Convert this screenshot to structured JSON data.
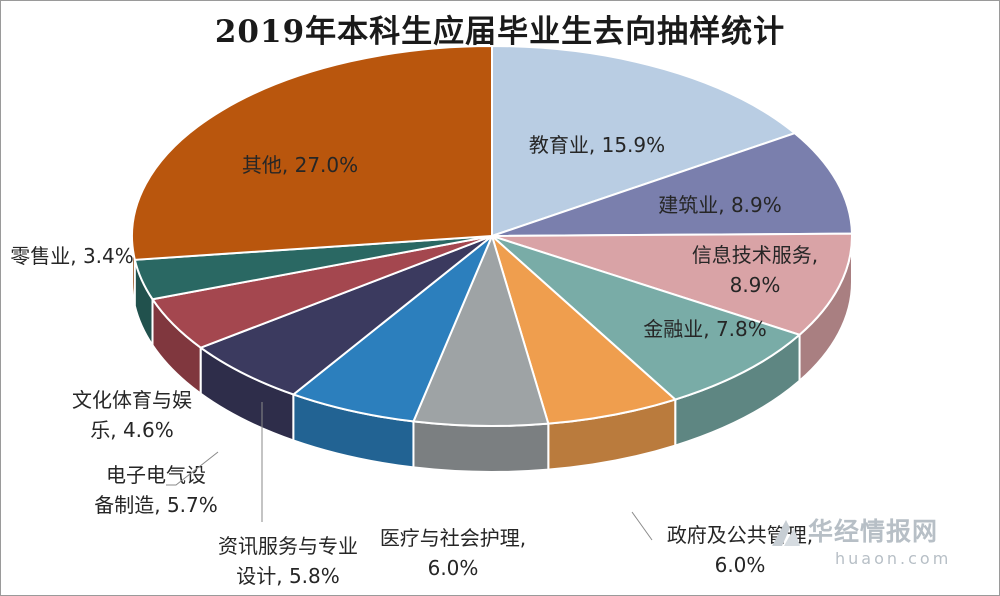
{
  "chart_data": {
    "type": "pie",
    "title": "2019年本科生应届毕业生去向抽样统计",
    "slices": [
      {
        "label": "教育业",
        "value": 15.9,
        "color": "#b9cde3"
      },
      {
        "label": "建筑业",
        "value": 8.9,
        "color": "#7a7fad"
      },
      {
        "label": "信息技术服务",
        "value": 8.9,
        "color": "#d9a3a6"
      },
      {
        "label": "金融业",
        "value": 7.8,
        "color": "#79aca7"
      },
      {
        "label": "政府及公共管理",
        "value": 6.0,
        "color": "#ef9e4e"
      },
      {
        "label": "医疗与社会护理",
        "value": 6.0,
        "color": "#9ea3a5"
      },
      {
        "label": "资讯服务与专业设计",
        "value": 5.8,
        "color": "#2c7fbd"
      },
      {
        "label": "电子电气设备制造",
        "value": 5.7,
        "color": "#3b3a5f"
      },
      {
        "label": "文化体育与娱乐",
        "value": 4.6,
        "color": "#a4474f"
      },
      {
        "label": "零售业",
        "value": 3.4,
        "color": "#2a6863"
      },
      {
        "label": "其他",
        "value": 27.0,
        "color": "#b9560d"
      }
    ],
    "labels": [
      [
        "教育业, 15.9%"
      ],
      [
        "建筑业, 8.9%"
      ],
      [
        "信息技术服务,",
        "8.9%"
      ],
      [
        "金融业, 7.8%"
      ],
      [
        "政府及公共管理,",
        "6.0%"
      ],
      [
        "医疗与社会护理,",
        "6.0%"
      ],
      [
        "资讯服务与专业",
        "设计, 5.8%"
      ],
      [
        "电子电气设",
        "备制造, 5.7%"
      ],
      [
        "文化体育与娱",
        "乐, 4.6%"
      ],
      [
        "零售业, 3.4%"
      ],
      [
        "其他, 27.0%"
      ]
    ]
  },
  "watermark": {
    "brand": "华经情报网",
    "url": "huaon.com"
  }
}
